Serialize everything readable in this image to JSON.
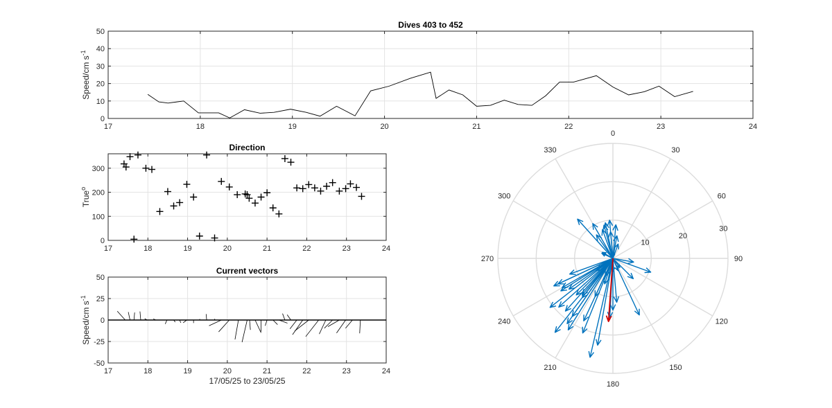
{
  "chart_data": [
    {
      "id": "speed",
      "type": "line",
      "title": "Dives 403 to 452",
      "ylabel_main": "Speed/cm s",
      "ylabel_sup": "-1",
      "xlim": [
        17,
        24
      ],
      "ylim": [
        0,
        50
      ],
      "xticks": [
        "17",
        "18",
        "19",
        "20",
        "21",
        "22",
        "23",
        "24"
      ],
      "yticks": [
        "0",
        "10",
        "20",
        "30",
        "40",
        "50"
      ],
      "grid": true,
      "line_color": "#000000",
      "x": [
        17.43,
        17.55,
        17.65,
        17.82,
        17.98,
        18.2,
        18.32,
        18.48,
        18.65,
        18.8,
        18.98,
        19.15,
        19.3,
        19.48,
        19.68,
        19.85,
        20.05,
        20.28,
        20.5,
        20.56,
        20.7,
        20.85,
        21.0,
        21.15,
        21.3,
        21.45,
        21.6,
        21.75,
        21.9,
        22.05,
        22.3,
        22.48,
        22.65,
        22.82,
        22.98,
        23.15,
        23.35
      ],
      "y": [
        13.8,
        9.5,
        8.8,
        10,
        3.2,
        3.2,
        0.3,
        5,
        3,
        3.5,
        5.3,
        3.5,
        1.3,
        7,
        1.5,
        15.8,
        18.5,
        23,
        26.5,
        11.5,
        16.3,
        13.5,
        7,
        7.5,
        10.5,
        8,
        7.5,
        13,
        20.8,
        20.8,
        24.5,
        18,
        13.5,
        15.3,
        18.5,
        12.5,
        15.5
      ]
    },
    {
      "id": "direction",
      "type": "scatter",
      "title": "Direction",
      "ylabel_main": "True",
      "ylabel_sup": "o",
      "xlim": [
        17,
        24
      ],
      "ylim": [
        0,
        360
      ],
      "xticks": [
        "17",
        "18",
        "19",
        "20",
        "21",
        "22",
        "23",
        "24"
      ],
      "yticks": [
        "0",
        "100",
        "200",
        "300"
      ],
      "grid": true,
      "marker": "+",
      "x": [
        17.4,
        17.45,
        17.55,
        17.65,
        17.75,
        17.95,
        18.1,
        18.3,
        18.5,
        18.65,
        18.8,
        18.98,
        19.15,
        19.3,
        19.48,
        19.68,
        19.85,
        20.05,
        20.25,
        20.45,
        20.5,
        20.55,
        20.7,
        20.85,
        21.0,
        21.15,
        21.3,
        21.45,
        21.6,
        21.75,
        21.9,
        22.05,
        22.2,
        22.35,
        22.5,
        22.65,
        22.82,
        22.98,
        23.1,
        23.25,
        23.38
      ],
      "y": [
        318,
        305,
        348,
        5,
        355,
        300,
        295,
        120,
        203,
        143,
        157,
        233,
        180,
        18,
        355,
        10,
        245,
        222,
        190,
        193,
        190,
        175,
        155,
        180,
        198,
        135,
        110,
        340,
        325,
        218,
        215,
        232,
        218,
        205,
        225,
        240,
        205,
        215,
        235,
        220,
        183
      ]
    },
    {
      "id": "vectors",
      "type": "quiver",
      "title": "Current vectors",
      "ylabel_main": "Speed/cm s",
      "ylabel_sup": "-1",
      "xlabel": "17/05/25 to 23/05/25",
      "xlim": [
        17,
        24
      ],
      "ylim": [
        -50,
        50
      ],
      "xticks": [
        "17",
        "18",
        "19",
        "20",
        "21",
        "22",
        "23",
        "24"
      ],
      "yticks": [
        "-50",
        "-25",
        "0",
        "25",
        "50"
      ],
      "grid": true,
      "x": [
        17.43,
        17.55,
        17.65,
        17.82,
        17.98,
        18.2,
        18.32,
        18.48,
        18.65,
        18.8,
        18.98,
        19.15,
        19.3,
        19.48,
        19.68,
        19.85,
        20.05,
        20.28,
        20.5,
        20.56,
        20.7,
        20.85,
        21.0,
        21.15,
        21.3,
        21.45,
        21.6,
        21.75,
        21.9,
        22.05,
        22.3,
        22.48,
        22.65,
        22.82,
        22.98,
        23.15,
        23.35
      ],
      "speed": [
        13.8,
        9.5,
        8.8,
        10,
        3.2,
        3.2,
        0.3,
        5,
        3,
        3.5,
        5.3,
        3.5,
        1.3,
        7,
        1.5,
        15.8,
        18.5,
        23,
        26.5,
        11.5,
        16.3,
        13.5,
        7,
        7.5,
        10.5,
        8,
        7.5,
        13,
        20.8,
        20.8,
        24.5,
        18,
        13.5,
        15.3,
        18.5,
        12.5,
        15.5
      ],
      "dir": [
        318,
        348,
        5,
        355,
        300,
        295,
        120,
        203,
        143,
        157,
        233,
        180,
        18,
        355,
        10,
        245,
        222,
        190,
        193,
        175,
        155,
        180,
        198,
        135,
        110,
        340,
        325,
        218,
        215,
        232,
        218,
        205,
        225,
        240,
        215,
        220,
        183
      ]
    },
    {
      "id": "polar",
      "type": "compass",
      "theta_labels": [
        "0",
        "30",
        "60",
        "90",
        "120",
        "150",
        "180",
        "210",
        "240",
        "270",
        "300",
        "330"
      ],
      "r_labels": [
        "10",
        "20",
        "30"
      ],
      "rmax": 30,
      "arrow_color": "#0072BD",
      "mean_color": "#D00000",
      "speed": [
        13.8,
        9.5,
        8.8,
        10,
        3.2,
        3.2,
        0.3,
        5,
        3,
        3.5,
        5.3,
        3.5,
        1.3,
        7,
        1.5,
        15.8,
        18.5,
        23,
        26.5,
        11.5,
        16.3,
        13.5,
        7,
        7.5,
        10.5,
        8,
        7.5,
        13,
        20.8,
        20.8,
        24.5,
        18,
        13.5,
        15.3,
        18.5,
        12.5,
        15.5,
        11,
        9,
        6,
        10.5,
        12,
        14,
        5.5,
        4,
        22,
        19,
        17,
        21,
        16
      ],
      "dir": [
        318,
        348,
        5,
        355,
        300,
        295,
        120,
        203,
        143,
        157,
        233,
        180,
        18,
        355,
        10,
        245,
        222,
        190,
        193,
        175,
        155,
        180,
        198,
        135,
        110,
        340,
        325,
        218,
        215,
        232,
        218,
        205,
        225,
        240,
        215,
        220,
        183,
        205,
        345,
        10,
        330,
        250,
        235,
        100,
        20,
        212,
        228,
        245,
        202,
        238
      ],
      "mean": {
        "speed": 16.5,
        "dir": 184
      }
    }
  ]
}
